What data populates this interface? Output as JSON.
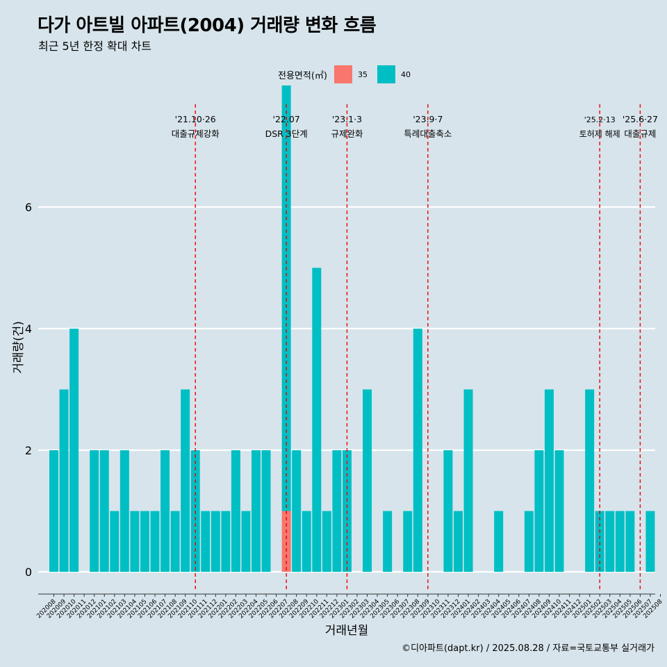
{
  "title": "다가 아트빌 아파트(2004) 거래량 변화 흐름",
  "subtitle": "최근 5년 한정 확대 차트",
  "caption": "©디아파트(dapt.kr) / 2025.08.28 / 자료=국토교통부 실거래가",
  "colors": {
    "background": "#d7e4eb",
    "s35": "#f8766d",
    "s40": "#00bfc4",
    "vline": "#ee0000",
    "grid": "#ffffff"
  },
  "legend": {
    "title": "전용면적(㎡)",
    "items": [
      {
        "label": "35",
        "color": "#f8766d"
      },
      {
        "label": "40",
        "color": "#00bfc4"
      }
    ]
  },
  "chart_data": {
    "type": "bar",
    "stacked": true,
    "xlabel": "거래년월",
    "ylabel": "거래량(건)",
    "ylim": [
      0,
      7
    ],
    "yticks": [
      0,
      2,
      4,
      6
    ],
    "categories": [
      "202008",
      "202009",
      "202010",
      "202011",
      "202012",
      "202101",
      "202102",
      "202103",
      "202104",
      "202105",
      "202106",
      "202107",
      "202108",
      "202109",
      "202110",
      "202111",
      "202112",
      "202201",
      "202202",
      "202203",
      "202204",
      "202205",
      "202206",
      "202207",
      "202208",
      "202209",
      "202210",
      "202211",
      "202212",
      "202301",
      "202302",
      "202303",
      "202304",
      "202305",
      "202306",
      "202307",
      "202308",
      "202309",
      "202310",
      "202311",
      "202312",
      "202401",
      "202402",
      "202403",
      "202404",
      "202405",
      "202406",
      "202407",
      "202408",
      "202409",
      "202410",
      "202411",
      "202412",
      "202501",
      "202502",
      "202503",
      "202504",
      "202505",
      "202506",
      "202507",
      "202508"
    ],
    "series": [
      {
        "name": "35",
        "color": "#f8766d",
        "values": [
          0,
          0,
          0,
          0,
          0,
          0,
          0,
          0,
          0,
          0,
          0,
          0,
          0,
          0,
          0,
          0,
          0,
          0,
          0,
          0,
          0,
          0,
          0,
          1,
          0,
          0,
          0,
          0,
          0,
          0,
          0,
          0,
          0,
          0,
          0,
          0,
          0,
          0,
          0,
          0,
          0,
          0,
          0,
          0,
          0,
          0,
          0,
          0,
          0,
          0,
          0,
          0,
          0,
          0,
          0,
          0,
          0,
          0,
          0,
          0,
          0
        ]
      },
      {
        "name": "40",
        "color": "#00bfc4",
        "values": [
          2,
          3,
          4,
          0,
          2,
          2,
          1,
          2,
          1,
          1,
          1,
          2,
          1,
          3,
          2,
          1,
          1,
          1,
          2,
          1,
          2,
          2,
          0,
          7,
          2,
          1,
          5,
          1,
          2,
          2,
          0,
          3,
          0,
          1,
          0,
          1,
          4,
          0,
          0,
          2,
          1,
          3,
          0,
          0,
          1,
          0,
          0,
          1,
          2,
          3,
          2,
          0,
          0,
          3,
          1,
          1,
          1,
          1,
          0,
          1,
          0
        ]
      }
    ],
    "annotations": [
      {
        "category": "202110",
        "line1": "'21.10·26",
        "line2": "대출규제강화"
      },
      {
        "category": "202207",
        "line1": "'22.07",
        "line2": "DSR 3단계"
      },
      {
        "category": "202301",
        "line1": "'23.1·3",
        "line2": "규제완화"
      },
      {
        "category": "202309",
        "line1": "'23.9·7",
        "line2": "특례대출축소"
      },
      {
        "category": "202502",
        "line1": "'25.2·13",
        "line2": "토허제 해제"
      },
      {
        "category": "202506",
        "line1": "'25.6·27",
        "line2": "대출규제"
      }
    ],
    "grid": true,
    "legend_position": "top"
  }
}
